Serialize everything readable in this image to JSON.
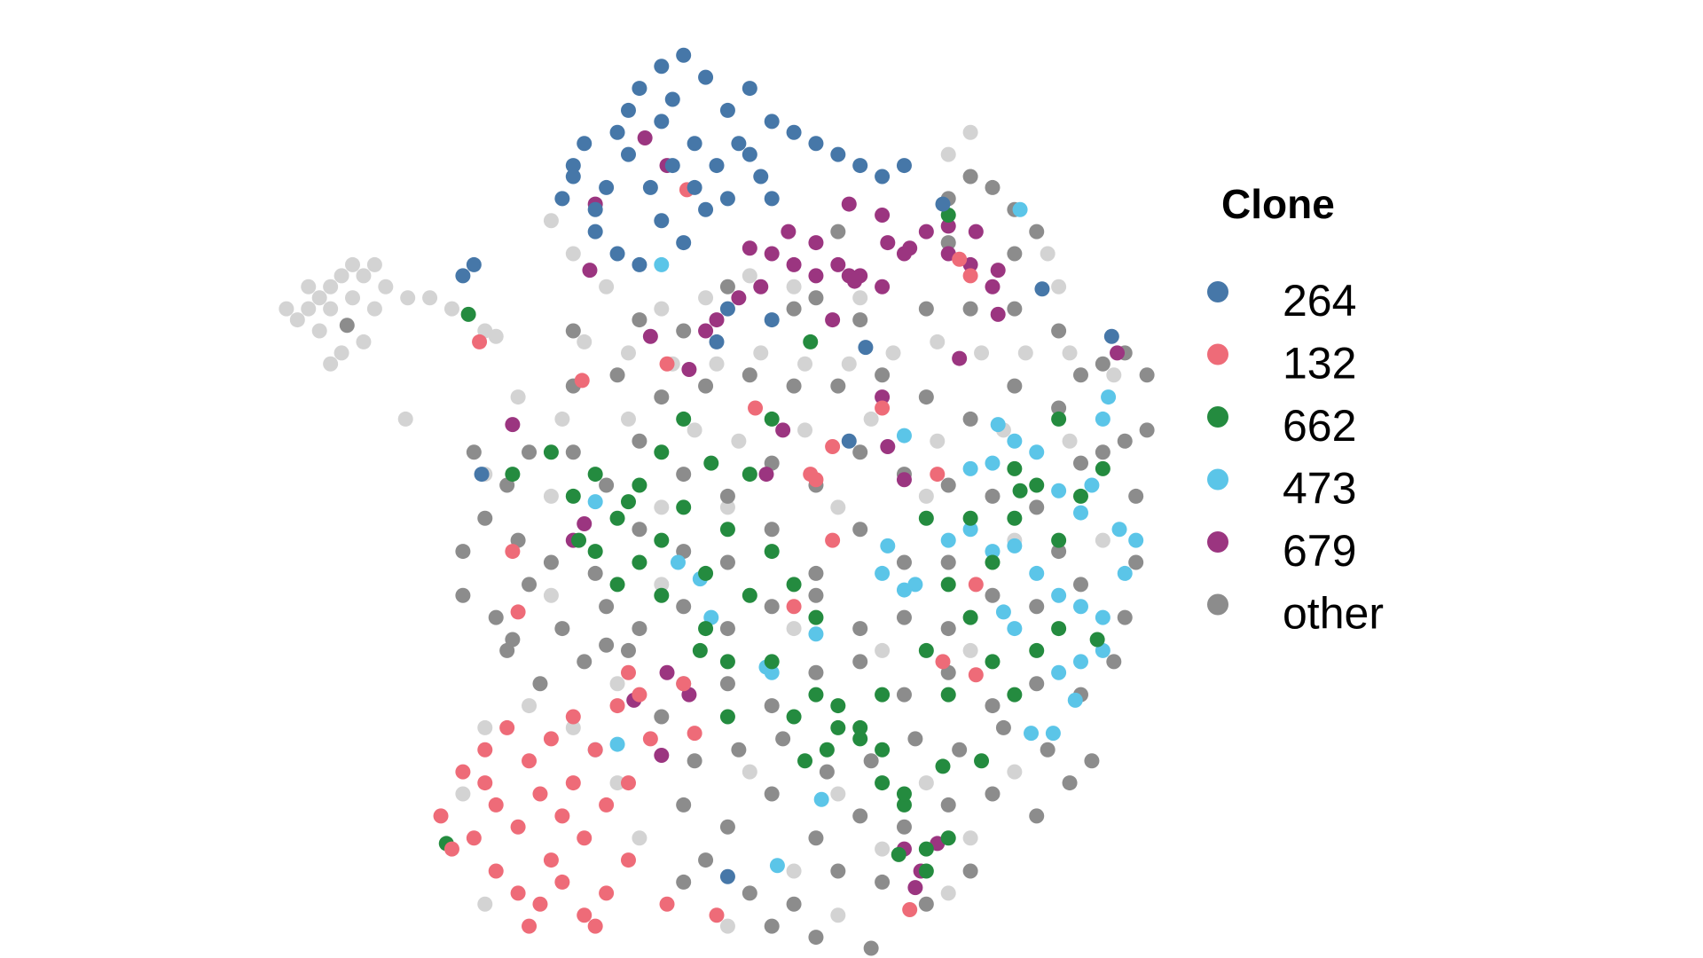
{
  "chart_data": {
    "type": "scatter",
    "legend_title": "Clone",
    "legend": "right",
    "xlim": [
      24,
      106
    ],
    "ylim": [
      4,
      88
    ],
    "series": [
      {
        "name": "264",
        "color": "#4677a8",
        "x": [
          52,
          54,
          56,
          58,
          60,
          62,
          64,
          66,
          68,
          70,
          72,
          74,
          76,
          78,
          80,
          82,
          60,
          62,
          56,
          58,
          64,
          66,
          70,
          54,
          52,
          60,
          63,
          68,
          43,
          42,
          66,
          70,
          65,
          78.5,
          94.5,
          100.8,
          77,
          43.7,
          66,
          85.5,
          55,
          57,
          59,
          61,
          63,
          65,
          67,
          69,
          61,
          57,
          51,
          53
        ],
        "values": [
          75,
          71,
          78,
          82,
          84,
          85,
          83,
          80,
          76,
          79,
          78,
          77,
          76,
          75,
          74,
          75,
          70,
          68,
          67,
          66,
          71,
          72,
          72,
          69,
          74,
          79,
          77,
          82,
          66,
          65,
          62,
          61,
          59,
          58.5,
          63.8,
          59.5,
          50,
          47,
          10.5,
          71.5,
          73,
          76,
          73,
          75,
          73,
          75,
          77,
          74,
          81,
          80,
          72,
          77
        ]
      },
      {
        "name": "132",
        "color": "#ee6b78",
        "x": [
          40,
          42,
          44,
          46,
          48,
          50,
          52,
          54,
          56,
          58,
          43,
          45,
          47,
          49,
          51,
          53,
          55,
          57,
          45,
          47,
          49,
          51,
          53,
          55,
          57,
          44,
          50,
          52,
          41,
          48,
          54,
          59,
          62,
          62.3,
          43.5,
          52.8,
          60.5,
          68.5,
          73.5,
          74,
          85,
          75.5,
          46.5,
          72,
          88.5,
          85.5,
          88.5,
          57,
          65,
          60.5,
          82.5,
          63,
          75.5,
          80,
          88,
          87,
          47
        ],
        "values": [
          16,
          20,
          22,
          24,
          21,
          23,
          25,
          22,
          26,
          27,
          14,
          11,
          9,
          8,
          10,
          7,
          9,
          12,
          17,
          15,
          18,
          16,
          14,
          17,
          19,
          19,
          12,
          19,
          13,
          6,
          6,
          23,
          28,
          72.8,
          59,
          55.5,
          57,
          53,
          47,
          46.5,
          47,
          41,
          40,
          35,
          37,
          30,
          28.8,
          29,
          7,
          8,
          7.5,
          23.5,
          49.5,
          53,
          65,
          66.5,
          34.5
        ]
      },
      {
        "name": "662",
        "color": "#248b3f",
        "x": [
          50,
          52,
          54,
          56,
          58,
          60,
          62,
          64,
          66,
          68,
          70,
          72,
          74,
          76,
          78,
          80,
          82,
          84,
          86,
          58,
          60,
          64,
          66,
          70,
          74,
          76,
          80,
          84,
          86,
          88,
          90,
          92,
          94,
          96,
          98,
          88,
          86,
          90,
          62,
          60,
          56,
          54,
          63.5,
          66,
          72,
          73,
          75,
          78,
          80,
          82,
          81.5,
          84,
          85.5,
          89,
          92,
          94,
          96,
          99.5,
          96,
          100,
          92.5,
          70,
          73.5,
          86,
          42.5,
          40.5,
          46.5,
          52.5,
          57,
          64.5,
          68,
          92,
          84
        ],
        "values": [
          49,
          45,
          47,
          43,
          46,
          41,
          44,
          38,
          42,
          36,
          40,
          37,
          34,
          26,
          24,
          19,
          17,
          13,
          14,
          39,
          36,
          33,
          30,
          30,
          27,
          24,
          27,
          31,
          27,
          34,
          39,
          43,
          46,
          41,
          45,
          43,
          37,
          30,
          52,
          49,
          37,
          40,
          31,
          25,
          25,
          21,
          22,
          23,
          22,
          18,
          12.5,
          11,
          20.5,
          21,
          27,
          31,
          33,
          32,
          52,
          47.5,
          45.5,
          52,
          59,
          70.5,
          61.5,
          13.5,
          47,
          41,
          44.5,
          48,
          47,
          47.5,
          43
        ]
      },
      {
        "name": "473",
        "color": "#5bc5e8",
        "x": [
          60,
          54,
          63.5,
          64.5,
          70,
          74,
          80.5,
          80,
          82,
          83,
          86,
          88,
          90,
          92,
          94,
          96,
          98,
          100,
          102,
          103,
          101.5,
          98,
          96,
          94,
          92,
          90,
          88,
          99,
          98,
          100,
          96,
          97.5,
          92,
          91,
          95.5,
          93.5,
          74.5,
          70.5,
          56,
          54,
          82,
          90.5,
          92.5,
          100.5,
          100,
          61.5,
          69.5
        ],
        "values": [
          66,
          44.5,
          37.5,
          34,
          29,
          32.5,
          40.5,
          38,
          36.5,
          37,
          41,
          42,
          40,
          40.5,
          38,
          36,
          35,
          34,
          38,
          41,
          42,
          43.5,
          45.5,
          49,
          50,
          48,
          47.5,
          46,
          30,
          31,
          29,
          26.5,
          33,
          34.5,
          23.5,
          23.5,
          17.5,
          11.5,
          22.5,
          22,
          50.5,
          51.5,
          71,
          54,
          52,
          39,
          29.5
        ]
      },
      {
        "name": "679",
        "color": "#9b3580",
        "x": [
          58.5,
          60.5,
          54,
          53.5,
          72,
          77,
          80,
          71.5,
          68,
          70,
          74,
          76,
          78,
          80.5,
          82,
          84,
          86,
          88.5,
          90.5,
          90,
          88,
          86,
          82.5,
          80,
          77,
          74,
          69,
          67,
          65,
          64,
          62.5,
          59,
          75.5,
          77.5,
          90.5,
          101.3,
          87,
          71,
          46.5,
          80,
          80.5,
          82,
          69.5,
          60.5,
          62.5,
          57.5,
          60,
          83.5,
          83,
          82,
          85,
          53,
          52
        ],
        "values": [
          77.5,
          75,
          71.5,
          65.5,
          66,
          71.5,
          70.5,
          69,
          67.5,
          67,
          68,
          66,
          65,
          68,
          67,
          69,
          69.5,
          69,
          65.5,
          64,
          66,
          67,
          67.5,
          64,
          65,
          65,
          64,
          63,
          61,
          60,
          56.5,
          59.5,
          61,
          64.5,
          61.5,
          58,
          57.5,
          51,
          51.5,
          54,
          49.5,
          46.5,
          47,
          29,
          27,
          26.5,
          21.5,
          11,
          9.5,
          13,
          13.5,
          42.5,
          41
        ]
      },
      {
        "name": "other",
        "color": "#8c8c8c",
        "x": [
          86,
          88,
          90,
          92,
          94,
          86,
          92,
          76,
          74,
          58,
          62,
          66,
          72,
          78,
          84,
          88,
          92,
          96,
          100,
          104,
          102,
          98,
          52,
          56,
          60,
          64,
          68,
          72,
          76,
          80,
          84,
          88,
          92,
          96,
          102,
          104,
          100,
          43,
          46,
          48,
          52,
          55,
          58,
          62,
          66,
          70,
          74,
          78,
          82,
          86,
          90,
          94,
          98,
          103,
          42,
          44,
          47,
          50,
          54,
          58,
          62,
          66,
          70,
          74,
          78,
          82,
          86,
          96,
          103,
          42,
          45,
          48,
          51,
          55,
          58,
          62,
          66,
          70,
          74,
          78,
          82,
          86,
          90,
          94,
          98,
          102,
          46,
          49,
          53,
          57,
          62,
          66,
          70,
          74,
          78,
          82,
          86,
          90,
          94,
          98,
          101,
          60,
          63,
          67,
          71,
          75,
          79,
          83,
          87,
          91,
          95,
          99,
          62,
          66,
          70,
          74,
          78,
          82,
          86,
          90,
          94,
          97,
          64,
          68,
          72,
          76,
          80,
          84,
          88,
          70,
          74,
          79,
          62,
          31.5,
          52,
          46.5,
          55
        ],
        "values": [
          72,
          74,
          73,
          71,
          69,
          68,
          67,
          69,
          63,
          61,
          60,
          64,
          62,
          61,
          62,
          62,
          62,
          60,
          57,
          56,
          58,
          56,
          55,
          56,
          54,
          55,
          56,
          55,
          55,
          56,
          54,
          52,
          55,
          53,
          50,
          51,
          49,
          49,
          46,
          49,
          49,
          46,
          50,
          47,
          45,
          48,
          46,
          49,
          47,
          46,
          45,
          44,
          48,
          45,
          40,
          43,
          41,
          39,
          38,
          42,
          40,
          39,
          42,
          38,
          42,
          39,
          39,
          40,
          39,
          36,
          34,
          37,
          33,
          35,
          33,
          35,
          33,
          35,
          36,
          33,
          34,
          33,
          36,
          35,
          37,
          34,
          31,
          28,
          30,
          31,
          28,
          28,
          26,
          29,
          30,
          27,
          29,
          26,
          28,
          27,
          30,
          25,
          21,
          22,
          23,
          20,
          21,
          23,
          22,
          24,
          22,
          21,
          17,
          15,
          18,
          14,
          16,
          15,
          17,
          18,
          16,
          19,
          12,
          9,
          8,
          11,
          10,
          8,
          11,
          6,
          5,
          4,
          10,
          60.5,
          60,
          32,
          31.5
        ]
      },
      {
        "color": "#d3d3d3",
        "x": [
          28,
          29,
          30,
          31,
          32,
          33,
          27,
          28,
          30,
          32,
          34,
          29,
          31,
          33,
          30,
          35,
          34,
          26,
          36.8,
          37,
          39,
          41,
          44,
          45,
          52,
          50,
          55,
          60,
          64,
          68,
          72,
          78,
          86,
          88,
          96,
          95,
          53,
          57,
          61,
          65,
          69,
          73,
          77,
          81,
          85,
          89,
          93,
          97,
          101,
          47,
          51,
          57,
          63,
          67,
          73,
          79,
          85,
          91,
          97,
          44,
          50,
          60,
          66,
          76,
          84,
          92,
          100,
          50,
          60,
          72,
          80,
          88,
          48,
          52,
          56,
          68,
          76,
          84,
          92,
          88,
          80,
          72,
          66,
          76,
          86,
          42,
          44,
          56,
          58,
          44
        ],
        "values": [
          62,
          63,
          64,
          65,
          66,
          65,
          61,
          64,
          62,
          63,
          62,
          60,
          58,
          59,
          57,
          64,
          66,
          62,
          52,
          63,
          63,
          62,
          60,
          59.5,
          67,
          70,
          64,
          62,
          63,
          65,
          64,
          63,
          76,
          78,
          64,
          67,
          59,
          58,
          57,
          57,
          58,
          57,
          57,
          58,
          59,
          58,
          58,
          58,
          56,
          54,
          52,
          52,
          51,
          50,
          51,
          52,
          50,
          51,
          50,
          47,
          45,
          44,
          44,
          44,
          45,
          41,
          41,
          36,
          37,
          33,
          31,
          31,
          26,
          24,
          28,
          20,
          18,
          19,
          20,
          14,
          13,
          11,
          6,
          7,
          9,
          18,
          24,
          19,
          14,
          8
        ]
      }
    ]
  }
}
